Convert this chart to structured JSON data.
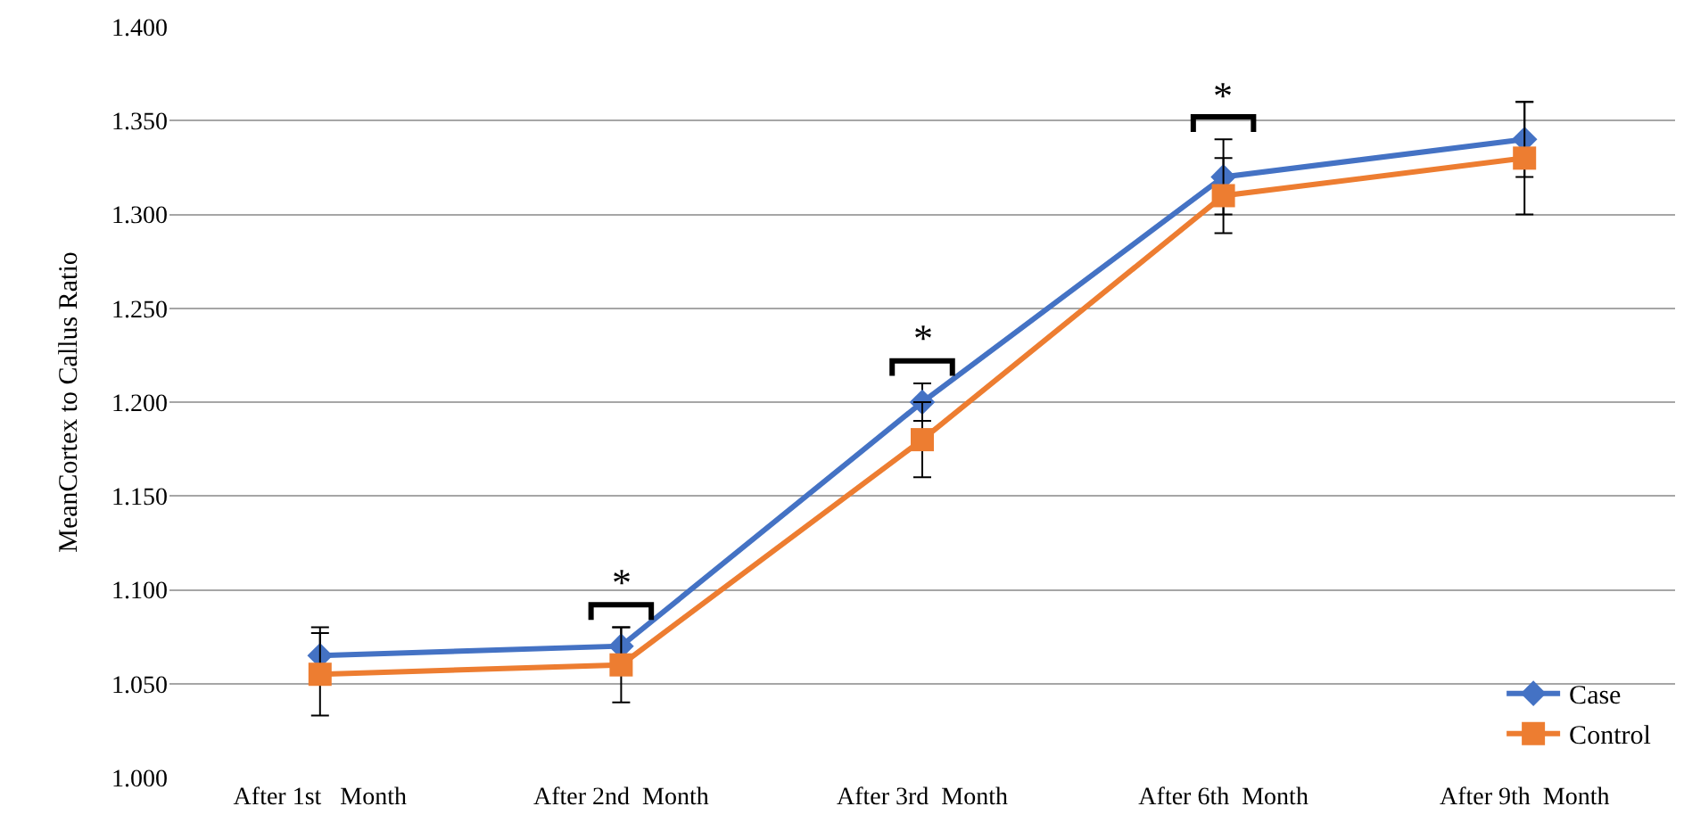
{
  "chart_data": {
    "type": "line",
    "ylabel": "MeanCortex to Callus Ratio",
    "categories": [
      "After 1st   Month",
      "After 2nd  Month",
      "After 3rd  Month",
      "After 6th  Month",
      "After 9th  Month"
    ],
    "series": [
      {
        "name": "Case",
        "color": "#4472c4",
        "marker": "diamond",
        "values": [
          1.065,
          1.07,
          1.2,
          1.32,
          1.34
        ],
        "errors": [
          0.015,
          0.01,
          0.01,
          0.02,
          0.02
        ]
      },
      {
        "name": "Control",
        "color": "#ed7d31",
        "marker": "square",
        "values": [
          1.055,
          1.06,
          1.18,
          1.31,
          1.33
        ],
        "errors": [
          0.022,
          0.02,
          0.02,
          0.02,
          0.03
        ]
      }
    ],
    "ylim": [
      1.0,
      1.4
    ],
    "yticks": [
      {
        "value": 1.0,
        "label": "1.000"
      },
      {
        "value": 1.05,
        "label": "1.050"
      },
      {
        "value": 1.1,
        "label": "1.100"
      },
      {
        "value": 1.15,
        "label": "1.150"
      },
      {
        "value": 1.2,
        "label": "1.200"
      },
      {
        "value": 1.25,
        "label": "1.250"
      },
      {
        "value": 1.3,
        "label": "1.300"
      },
      {
        "value": 1.35,
        "label": "1.350"
      },
      {
        "value": 1.4,
        "label": "1.400"
      }
    ],
    "grid": "y",
    "legend": "bottom right",
    "annotations": [
      "*",
      "*",
      "*"
    ]
  }
}
